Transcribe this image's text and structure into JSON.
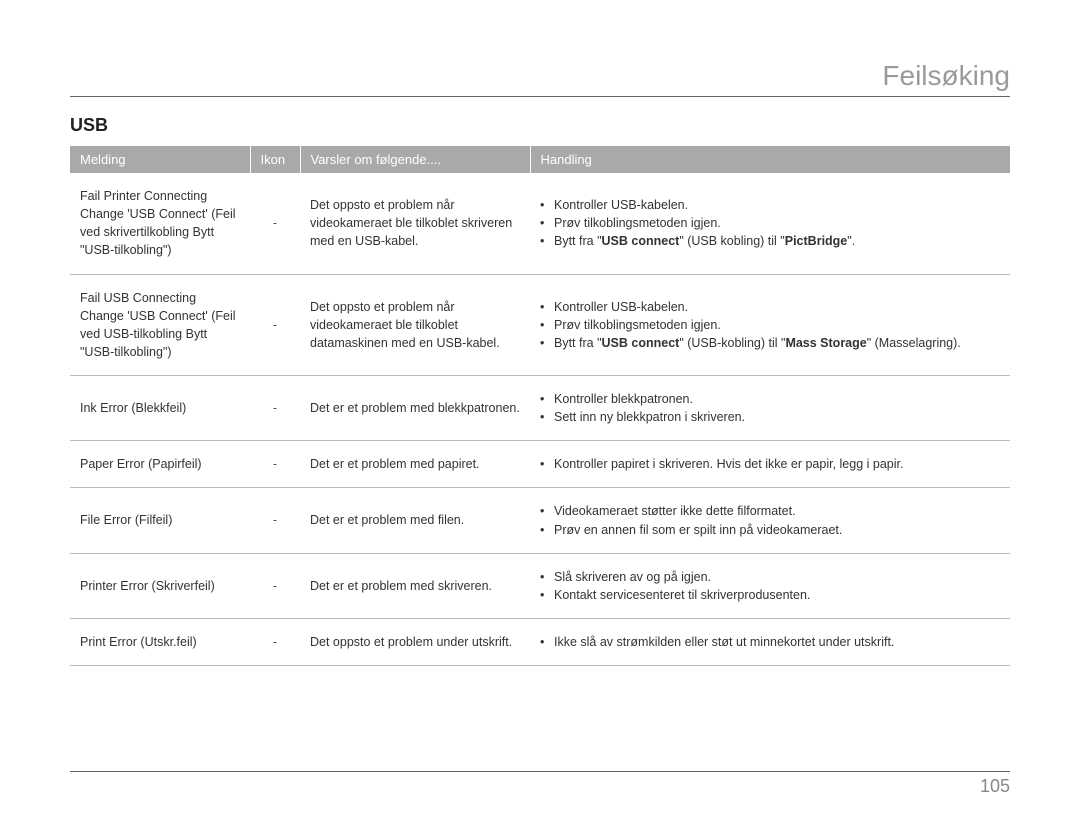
{
  "page": {
    "title": "Feilsøking",
    "section": "USB",
    "pageNumber": "105",
    "colors": {
      "header_bg": "#a9a9a7",
      "header_text": "#ffffff",
      "border": "#bdbdbd",
      "title_color": "#9a9a9a",
      "body_text": "#333333"
    },
    "table": {
      "headers": {
        "melding": "Melding",
        "ikon": "Ikon",
        "varsler": "Varsler om følgende....",
        "handling": "Handling"
      },
      "rows": [
        {
          "melding": "Fail Printer Connecting Change 'USB Connect' (Feil ved skrivertilkobling Bytt \"USB-tilkobling\")",
          "ikon": "-",
          "varsler": "Det oppsto et problem når videokameraet ble tilkoblet skriveren med en USB-kabel.",
          "handling": [
            [
              {
                "t": "Kontroller USB-kabelen."
              }
            ],
            [
              {
                "t": "Prøv tilkoblingsmetoden igjen."
              }
            ],
            [
              {
                "t": "Bytt fra \""
              },
              {
                "t": "USB connect",
                "b": true
              },
              {
                "t": "\" (USB kobling) til \""
              },
              {
                "t": "PictBridge",
                "b": true
              },
              {
                "t": "\"."
              }
            ]
          ]
        },
        {
          "melding": "Fail USB Connecting Change 'USB Connect' (Feil ved USB-tilkobling Bytt \"USB-tilkobling\")",
          "ikon": "-",
          "varsler": "Det oppsto et problem når videokameraet ble tilkoblet datamaskinen med en USB-kabel.",
          "handling": [
            [
              {
                "t": "Kontroller USB-kabelen."
              }
            ],
            [
              {
                "t": "Prøv tilkoblingsmetoden igjen."
              }
            ],
            [
              {
                "t": "Bytt fra \""
              },
              {
                "t": "USB connect",
                "b": true
              },
              {
                "t": "\" (USB-kobling) til \""
              },
              {
                "t": "Mass Storage",
                "b": true
              },
              {
                "t": "\" (Masselagring)."
              }
            ]
          ]
        },
        {
          "melding": "Ink Error (Blekkfeil)",
          "ikon": "-",
          "varsler": "Det er et problem med blekkpatronen.",
          "handling": [
            [
              {
                "t": "Kontroller blekkpatronen."
              }
            ],
            [
              {
                "t": "Sett inn ny blekkpatron i skriveren."
              }
            ]
          ]
        },
        {
          "melding": "Paper Error (Papirfeil)",
          "ikon": "-",
          "varsler": "Det er et problem med papiret.",
          "handling": [
            [
              {
                "t": "Kontroller papiret i skriveren. Hvis det ikke er papir, legg i papir."
              }
            ]
          ]
        },
        {
          "melding": "File Error (Filfeil)",
          "ikon": "-",
          "varsler": "Det er et problem med filen.",
          "handling": [
            [
              {
                "t": "Videokameraet støtter ikke dette filformatet."
              }
            ],
            [
              {
                "t": "Prøv en annen fil som er spilt inn på videokameraet."
              }
            ]
          ]
        },
        {
          "melding": "Printer Error (Skriverfeil)",
          "ikon": "-",
          "varsler": "Det er et problem med skriveren.",
          "handling": [
            [
              {
                "t": "Slå skriveren av og på igjen."
              }
            ],
            [
              {
                "t": "Kontakt servicesenteret til skriverprodusenten."
              }
            ]
          ]
        },
        {
          "melding": "Print Error (Utskr.feil)",
          "ikon": "-",
          "varsler": "Det oppsto et problem under utskrift.",
          "handling": [
            [
              {
                "t": "Ikke slå av strømkilden eller støt ut minnekortet under utskrift."
              }
            ]
          ]
        }
      ]
    }
  }
}
